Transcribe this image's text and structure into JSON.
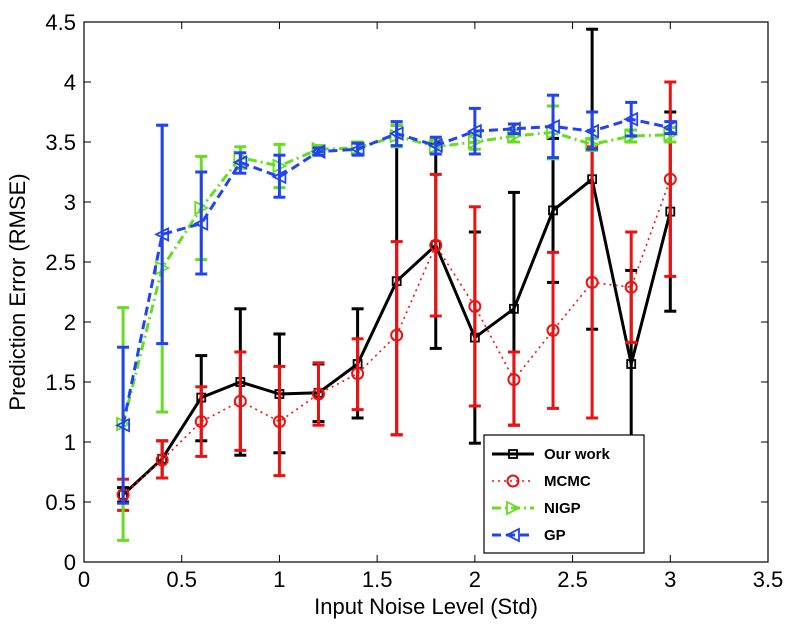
{
  "chart_data": {
    "type": "line",
    "title": "",
    "xlabel": "Input Noise Level (Std)",
    "ylabel": "Prediction Error (RMSE)",
    "xlim": [
      0,
      3.5
    ],
    "ylim": [
      0,
      4.5
    ],
    "xticks": [
      0,
      0.5,
      1,
      1.5,
      2,
      2.5,
      3,
      3.5
    ],
    "xtick_labels": [
      "0",
      "0.5",
      "1",
      "1.5",
      "2",
      "2.5",
      "3",
      "3.5"
    ],
    "yticks": [
      0,
      0.5,
      1,
      1.5,
      2,
      2.5,
      3,
      3.5,
      4,
      4.5
    ],
    "ytick_labels": [
      "0",
      "0.5",
      "1",
      "1.5",
      "2",
      "2.5",
      "3",
      "3.5",
      "4",
      "4.5"
    ],
    "grid": false,
    "legend_position": "bottom-right",
    "x": [
      0.2,
      0.4,
      0.6,
      0.8,
      1.0,
      1.2,
      1.4,
      1.6,
      1.8,
      2.0,
      2.2,
      2.4,
      2.6,
      2.8,
      3.0
    ],
    "series": [
      {
        "name": "Our work",
        "color": "#000000",
        "line_style": "solid",
        "marker": "square",
        "values": [
          0.56,
          0.86,
          1.37,
          1.5,
          1.4,
          1.41,
          1.65,
          2.34,
          2.64,
          1.87,
          2.11,
          2.93,
          3.19,
          1.65,
          2.92
        ],
        "err_low": [
          0.5,
          0.7,
          1.01,
          0.89,
          0.91,
          1.17,
          1.2,
          1.06,
          1.78,
          0.99,
          1.14,
          2.33,
          1.94,
          0.69,
          2.09
        ],
        "err_high": [
          0.62,
          1.01,
          1.72,
          2.11,
          1.9,
          1.65,
          2.11,
          3.64,
          3.49,
          2.75,
          3.08,
          3.53,
          4.44,
          2.43,
          3.75
        ]
      },
      {
        "name": "MCMC",
        "color": "#ee1111",
        "line_style": "dotted",
        "marker": "circle",
        "values": [
          0.56,
          0.85,
          1.17,
          1.34,
          1.17,
          1.4,
          1.57,
          1.89,
          2.64,
          2.13,
          1.52,
          1.93,
          2.33,
          2.29,
          3.19
        ],
        "err_low": [
          0.43,
          0.7,
          0.88,
          0.93,
          0.72,
          1.14,
          1.27,
          1.06,
          2.05,
          1.3,
          1.14,
          1.28,
          1.2,
          1.83,
          2.38
        ],
        "err_high": [
          0.69,
          1.01,
          1.46,
          1.75,
          1.63,
          1.66,
          1.86,
          2.67,
          3.23,
          2.96,
          1.75,
          2.58,
          3.46,
          2.75,
          4.0
        ]
      },
      {
        "name": "NIGP",
        "color": "#66dd22",
        "line_style": "dashdot",
        "marker": "triangle-right",
        "values": [
          1.15,
          2.45,
          2.95,
          3.37,
          3.3,
          3.44,
          3.45,
          3.55,
          3.46,
          3.5,
          3.55,
          3.58,
          3.48,
          3.55,
          3.56
        ],
        "err_low": [
          0.18,
          1.25,
          2.52,
          3.28,
          3.12,
          3.41,
          3.4,
          3.46,
          3.4,
          3.44,
          3.5,
          3.36,
          3.43,
          3.5,
          3.5
        ],
        "err_high": [
          2.12,
          3.64,
          3.38,
          3.46,
          3.48,
          3.47,
          3.5,
          3.64,
          3.52,
          3.56,
          3.6,
          3.8,
          3.53,
          3.6,
          3.62
        ]
      },
      {
        "name": "GP",
        "color": "#2244ee",
        "line_style": "dashed",
        "marker": "triangle-left",
        "values": [
          1.14,
          2.73,
          2.82,
          3.33,
          3.21,
          3.42,
          3.44,
          3.57,
          3.47,
          3.59,
          3.61,
          3.63,
          3.59,
          3.69,
          3.62
        ],
        "err_low": [
          0.49,
          1.82,
          2.4,
          3.24,
          3.04,
          3.39,
          3.39,
          3.47,
          3.4,
          3.4,
          3.57,
          3.37,
          3.44,
          3.55,
          3.57
        ],
        "err_high": [
          1.79,
          3.64,
          3.25,
          3.41,
          3.39,
          3.45,
          3.49,
          3.67,
          3.54,
          3.78,
          3.65,
          3.89,
          3.75,
          3.83,
          3.67
        ]
      }
    ]
  }
}
